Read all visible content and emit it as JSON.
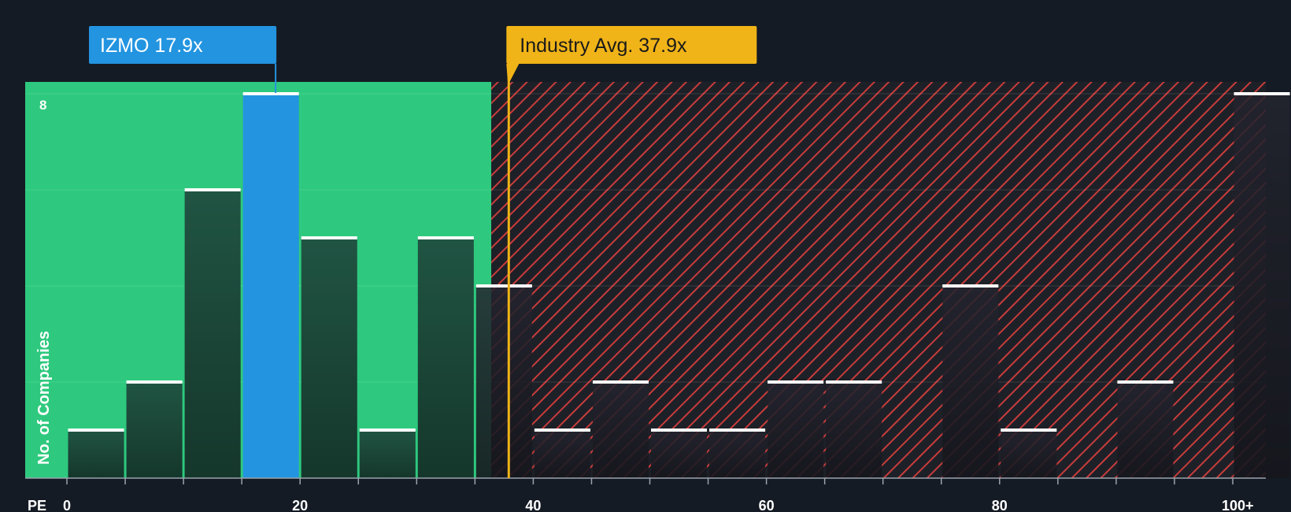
{
  "chart_data": {
    "type": "bar",
    "title": "",
    "xlabel": "PE",
    "ylabel": "No. of Companies",
    "xlim": [
      -5,
      102
    ],
    "ylim": [
      0,
      8.3
    ],
    "x_ticks": [
      {
        "value": 0,
        "label": "0"
      },
      {
        "value": 20,
        "label": "20"
      },
      {
        "value": 40,
        "label": "40"
      },
      {
        "value": 60,
        "label": "60"
      },
      {
        "value": 80,
        "label": "80"
      },
      {
        "value": 100,
        "label": "100+"
      }
    ],
    "y_max_label": "8",
    "y_max_value": 8,
    "y_gridlines": [
      2,
      4,
      6,
      8
    ],
    "bins": [
      {
        "x0": 0,
        "x1": 5,
        "count": 1
      },
      {
        "x0": 5,
        "x1": 10,
        "count": 2
      },
      {
        "x0": 10,
        "x1": 15,
        "count": 6
      },
      {
        "x0": 15,
        "x1": 20,
        "count": 8,
        "highlight": true
      },
      {
        "x0": 20,
        "x1": 25,
        "count": 5
      },
      {
        "x0": 25,
        "x1": 30,
        "count": 1
      },
      {
        "x0": 30,
        "x1": 35,
        "count": 5
      },
      {
        "x0": 35,
        "x1": 40,
        "count": 4
      },
      {
        "x0": 40,
        "x1": 45,
        "count": 1
      },
      {
        "x0": 45,
        "x1": 50,
        "count": 2
      },
      {
        "x0": 50,
        "x1": 55,
        "count": 1
      },
      {
        "x0": 55,
        "x1": 60,
        "count": 1
      },
      {
        "x0": 60,
        "x1": 65,
        "count": 2
      },
      {
        "x0": 65,
        "x1": 70,
        "count": 2
      },
      {
        "x0": 75,
        "x1": 80,
        "count": 4
      },
      {
        "x0": 80,
        "x1": 85,
        "count": 1
      },
      {
        "x0": 90,
        "x1": 95,
        "count": 2
      },
      {
        "x0": 100,
        "x1": 105,
        "count": 8
      }
    ],
    "fair_zone_end": 36.4,
    "company": {
      "label": "IZMO 17.9x",
      "value": 17.9
    },
    "industry": {
      "label": "Industry Avg. 37.9x",
      "value": 37.9
    },
    "colors": {
      "background": "#151b24",
      "fair_zone": "#2ec97e",
      "bar_in_zone": "#1f4a3e",
      "bar_out_zone": "#23252f",
      "highlight_bar": "#2394e0",
      "hatch": "#c83c3c",
      "zone_bg": "#1e2027",
      "company_label_bg": "#2394e0",
      "industry_label_bg": "#f0b418",
      "bar_cap": "#ffffff"
    }
  }
}
